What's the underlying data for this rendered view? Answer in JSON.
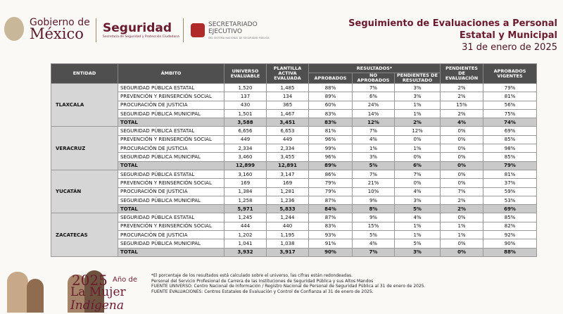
{
  "header": {
    "gov_small": "Gobierno de",
    "gov_big": "México",
    "agency": "Seguridad",
    "agency_sub": "Secretaría de Seguridad y Protección Ciudadana",
    "sesnsp_1": "SECRETARIADO",
    "sesnsp_2": "EJECUTIVO",
    "sesnsp_sub": "DEL SISTEMA NACIONAL DE SEGURIDAD PÚBLICA",
    "title_1": "Seguimiento de Evaluaciones a Personal",
    "title_2": "Estatal y Municipal",
    "date": "31 de enero de 2025"
  },
  "table": {
    "columns": {
      "entidad": "ENTIDAD",
      "ambito": "ÁMBITO",
      "universo": "UNIVERSO EVALUABLE",
      "plantilla": "PLANTILLA ACTIVA EVALUADA",
      "resultados": "RESULTADOS*",
      "aprobados": "APROBADOS",
      "no_aprobados": "NO APROBADOS",
      "pendientes_resultado": "PENDIENTES DE RESULTADO",
      "pendientes_evaluacion": "PENDIENTES DE EVALUACIÓN",
      "vigentes": "APROBADOS VIGENTES"
    },
    "groups": [
      {
        "entity": "TLAXCALA",
        "rows": [
          [
            "SEGURIDAD PÚBLICA ESTATAL",
            "1,520",
            "1,485",
            "88%",
            "7%",
            "3%",
            "2%",
            "79%"
          ],
          [
            "PREVENCIÓN Y REINSERCIÓN SOCIAL",
            "137",
            "134",
            "89%",
            "6%",
            "3%",
            "2%",
            "81%"
          ],
          [
            "PROCURACIÓN DE JUSTICIA",
            "430",
            "365",
            "60%",
            "24%",
            "1%",
            "15%",
            "56%"
          ],
          [
            "SEGURIDAD PÚBLICA MUNICIPAL",
            "1,501",
            "1,467",
            "83%",
            "14%",
            "1%",
            "2%",
            "75%"
          ]
        ],
        "total": [
          "TOTAL",
          "3,588",
          "3,451",
          "83%",
          "12%",
          "2%",
          "4%",
          "74%"
        ]
      },
      {
        "entity": "VERACRUZ",
        "rows": [
          [
            "SEGURIDAD PÚBLICA ESTATAL",
            "6,656",
            "6,653",
            "81%",
            "7%",
            "12%",
            "0%",
            "69%"
          ],
          [
            "PREVENCIÓN Y REINSERCIÓN SOCIAL",
            "449",
            "449",
            "96%",
            "4%",
            "0%",
            "0%",
            "85%"
          ],
          [
            "PROCURACIÓN DE JUSTICIA",
            "2,334",
            "2,334",
            "99%",
            "1%",
            "1%",
            "0%",
            "98%"
          ],
          [
            "SEGURIDAD PÚBLICA MUNICIPAL",
            "3,460",
            "3,455",
            "96%",
            "3%",
            "0%",
            "0%",
            "85%"
          ]
        ],
        "total": [
          "TOTAL",
          "12,899",
          "12,891",
          "89%",
          "5%",
          "6%",
          "0%",
          "79%"
        ]
      },
      {
        "entity": "YUCATÁN",
        "rows": [
          [
            "SEGURIDAD PÚBLICA ESTATAL",
            "3,160",
            "3,147",
            "86%",
            "7%",
            "7%",
            "0%",
            "81%"
          ],
          [
            "PREVENCIÓN Y REINSERCIÓN SOCIAL",
            "169",
            "169",
            "79%",
            "21%",
            "0%",
            "0%",
            "37%"
          ],
          [
            "PROCURACIÓN DE JUSTICIA",
            "1,384",
            "1,281",
            "79%",
            "10%",
            "4%",
            "7%",
            "59%"
          ],
          [
            "SEGURIDAD PÚBLICA MUNICIPAL",
            "1,258",
            "1,236",
            "87%",
            "9%",
            "3%",
            "2%",
            "53%"
          ]
        ],
        "total": [
          "TOTAL",
          "5,971",
          "5,833",
          "84%",
          "8%",
          "5%",
          "2%",
          "69%"
        ]
      },
      {
        "entity": "ZACATECAS",
        "rows": [
          [
            "SEGURIDAD PÚBLICA ESTATAL",
            "1,245",
            "1,244",
            "87%",
            "9%",
            "4%",
            "0%",
            "85%"
          ],
          [
            "PREVENCIÓN Y REINSERCIÓN SOCIAL",
            "444",
            "440",
            "83%",
            "15%",
            "1%",
            "1%",
            "82%"
          ],
          [
            "PROCURACIÓN DE JUSTICIA",
            "1,202",
            "1,195",
            "93%",
            "5%",
            "1%",
            "1%",
            "92%"
          ],
          [
            "SEGURIDAD PÚBLICA MUNICIPAL",
            "1,041",
            "1,038",
            "91%",
            "4%",
            "5%",
            "0%",
            "90%"
          ]
        ],
        "total": [
          "TOTAL",
          "3,932",
          "3,917",
          "90%",
          "7%",
          "3%",
          "0%",
          "88%"
        ]
      }
    ]
  },
  "footer": {
    "year": "2025",
    "tag_1": "Año de",
    "tag_2": "La Mujer",
    "tag_3": "Indígena",
    "notes": [
      "*El porcentaje de los resultados está calculado sobre el universo, las cifras están redondeadas.",
      "Personal del Servicio Profesional de Carrera de las Instituciones de Seguridad Pública y sus Altos Mandos",
      "FUENTE UNIVERSO: Centro Nacional de Información / Registro Nacional de Personal de Seguridad Pública al 31 de enero de 2025.",
      "FUENTE EVALUACIONES: Centros Estatales de Evaluación y Control de Confianza al 31 de enero de 2025."
    ]
  }
}
